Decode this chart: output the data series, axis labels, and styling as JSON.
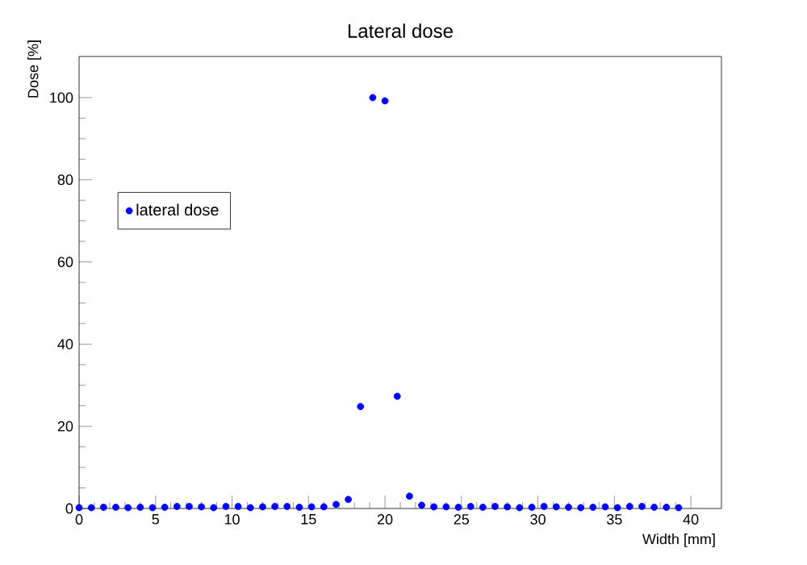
{
  "chart_data": {
    "type": "scatter",
    "title": "Lateral dose",
    "xlabel": "Width [mm]",
    "ylabel": "Dose [%]",
    "x": [
      0,
      0.8,
      1.6,
      2.4,
      3.2,
      4.0,
      4.8,
      5.6,
      6.4,
      7.2,
      8.0,
      8.8,
      9.6,
      10.4,
      11.2,
      12.0,
      12.8,
      13.6,
      14.4,
      15.2,
      16.0,
      16.8,
      17.6,
      18.4,
      19.2,
      20.0,
      20.8,
      21.6,
      22.4,
      23.2,
      24.0,
      24.8,
      25.6,
      26.4,
      27.2,
      28.0,
      28.8,
      29.6,
      30.4,
      31.2,
      32.0,
      32.8,
      33.6,
      34.4,
      35.2,
      36.0,
      36.8,
      37.6,
      38.4,
      39.2
    ],
    "series": [
      {
        "name": "lateral dose",
        "color": "#0000ff",
        "values": [
          0.2,
          0.2,
          0.3,
          0.3,
          0.2,
          0.3,
          0.2,
          0.3,
          0.5,
          0.5,
          0.4,
          0.2,
          0.5,
          0.5,
          0.2,
          0.4,
          0.5,
          0.5,
          0.3,
          0.4,
          0.4,
          1.0,
          2.2,
          24.8,
          100,
          99.2,
          27.3,
          3.0,
          0.8,
          0.4,
          0.4,
          0.3,
          0.5,
          0.3,
          0.5,
          0.4,
          0.2,
          0.3,
          0.5,
          0.4,
          0.3,
          0.2,
          0.3,
          0.4,
          0.2,
          0.5,
          0.5,
          0.3,
          0.3,
          0.2
        ]
      }
    ],
    "xlim": [
      0,
      42
    ],
    "ylim": [
      0,
      110
    ],
    "xticks": [
      0,
      5,
      10,
      15,
      20,
      25,
      30,
      35,
      40
    ],
    "yticks": [
      0,
      20,
      40,
      60,
      80,
      100
    ],
    "marker": "circle",
    "grid": false,
    "legend": "top left"
  }
}
